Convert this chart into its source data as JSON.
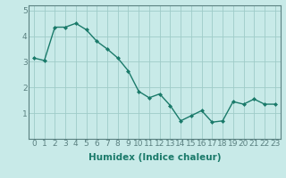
{
  "x": [
    0,
    1,
    2,
    3,
    4,
    5,
    6,
    7,
    8,
    9,
    10,
    11,
    12,
    13,
    14,
    15,
    16,
    17,
    18,
    19,
    20,
    21,
    22,
    23
  ],
  "y": [
    3.15,
    3.05,
    4.35,
    4.35,
    4.5,
    4.25,
    3.8,
    3.5,
    3.15,
    2.65,
    1.85,
    1.6,
    1.75,
    1.3,
    0.7,
    0.9,
    1.1,
    0.65,
    0.7,
    1.45,
    1.35,
    1.55,
    1.35,
    1.35
  ],
  "line_color": "#1a7a6a",
  "marker": "D",
  "marker_size": 2.0,
  "bg_color": "#c8eae8",
  "grid_color": "#9fccc8",
  "xlabel": "Humidex (Indice chaleur)",
  "xlabel_fontsize": 7.5,
  "tick_fontsize": 6.5,
  "ylim": [
    0,
    5.2
  ],
  "xlim": [
    -0.5,
    23.5
  ],
  "yticks": [
    1,
    2,
    3,
    4,
    5
  ],
  "xticks": [
    0,
    1,
    2,
    3,
    4,
    5,
    6,
    7,
    8,
    9,
    10,
    11,
    12,
    13,
    14,
    15,
    16,
    17,
    18,
    19,
    20,
    21,
    22,
    23
  ],
  "line_width": 1.0,
  "spine_color": "#5a8080"
}
